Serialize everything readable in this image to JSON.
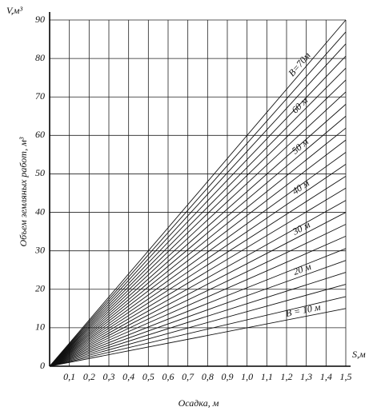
{
  "chart_data": {
    "type": "line",
    "x_label": "Осадка, м",
    "y_label": "Объем земляных работ, м³",
    "x_corner_label": "S,м",
    "y_corner_label": "V,м³",
    "x": [
      0,
      1.5
    ],
    "xlim": [
      0,
      1.5
    ],
    "ylim": [
      0,
      90
    ],
    "xticks": [
      {
        "value": 0.1,
        "label": "0,1"
      },
      {
        "value": 0.2,
        "label": "0,2"
      },
      {
        "value": 0.3,
        "label": "0,3"
      },
      {
        "value": 0.4,
        "label": "0,4"
      },
      {
        "value": 0.5,
        "label": "0,5"
      },
      {
        "value": 0.6,
        "label": "0,6"
      },
      {
        "value": 0.7,
        "label": "0,7"
      },
      {
        "value": 0.8,
        "label": "0,8"
      },
      {
        "value": 0.9,
        "label": "0,9"
      },
      {
        "value": 1.0,
        "label": "1,0"
      },
      {
        "value": 1.1,
        "label": "1,1"
      },
      {
        "value": 1.2,
        "label": "1,2"
      },
      {
        "value": 1.3,
        "label": "1,3"
      },
      {
        "value": 1.4,
        "label": "1,4"
      },
      {
        "value": 1.5,
        "label": "1,5"
      }
    ],
    "yticks": [
      0,
      10,
      20,
      30,
      40,
      50,
      60,
      70,
      80,
      90
    ],
    "grid": true,
    "color": "#111111",
    "series": [
      {
        "name": "B = 10 м",
        "values": [
          0,
          15
        ]
      },
      {
        "values": [
          0,
          18.1
        ]
      },
      {
        "values": [
          0,
          21.3
        ]
      },
      {
        "values": [
          0,
          24.4
        ]
      },
      {
        "name": "20 м",
        "values": [
          0,
          27.5
        ]
      },
      {
        "values": [
          0,
          30.6
        ]
      },
      {
        "values": [
          0,
          33.8
        ]
      },
      {
        "values": [
          0,
          36.9
        ]
      },
      {
        "name": "30 м",
        "values": [
          0,
          40
        ]
      },
      {
        "values": [
          0,
          43.1
        ]
      },
      {
        "values": [
          0,
          46.3
        ]
      },
      {
        "values": [
          0,
          49.4
        ]
      },
      {
        "name": "40 м",
        "values": [
          0,
          52.5
        ]
      },
      {
        "values": [
          0,
          55.6
        ]
      },
      {
        "values": [
          0,
          58.8
        ]
      },
      {
        "values": [
          0,
          61.9
        ]
      },
      {
        "name": "50 м",
        "values": [
          0,
          65
        ]
      },
      {
        "values": [
          0,
          68.1
        ]
      },
      {
        "values": [
          0,
          71.3
        ]
      },
      {
        "values": [
          0,
          74.4
        ]
      },
      {
        "name": "60 м",
        "values": [
          0,
          77.5
        ]
      },
      {
        "values": [
          0,
          80.6
        ]
      },
      {
        "values": [
          0,
          83.8
        ]
      },
      {
        "values": [
          0,
          86.9
        ]
      },
      {
        "name": "B=70м",
        "values": [
          0,
          90
        ]
      }
    ]
  }
}
